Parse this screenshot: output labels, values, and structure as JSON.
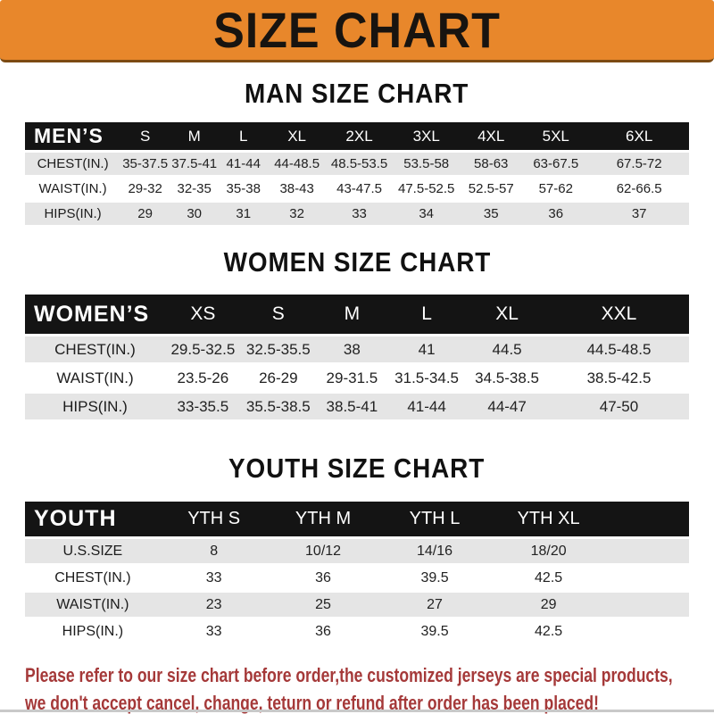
{
  "banner": {
    "title": "SIZE CHART",
    "bg_color": "#E8872B",
    "text_color": "#181410"
  },
  "sections": [
    {
      "heading": "MAN SIZE CHART",
      "corner_label": "MEN’S",
      "columns": [
        "S",
        "M",
        "L",
        "XL",
        "2XL",
        "3XL",
        "4XL",
        "5XL",
        "6XL"
      ],
      "rows": [
        {
          "label": "CHEST(IN.)",
          "values": [
            "35-37.5",
            "37.5-41",
            "41-44",
            "44-48.5",
            "48.5-53.5",
            "53.5-58",
            "58-63",
            "63-67.5",
            "67.5-72"
          ]
        },
        {
          "label": "WAIST(IN.)",
          "values": [
            "29-32",
            "32-35",
            "35-38",
            "38-43",
            "43-47.5",
            "47.5-52.5",
            "52.5-57",
            "57-62",
            "62-66.5"
          ]
        },
        {
          "label": "HIPS(IN.)",
          "values": [
            "29",
            "30",
            "31",
            "32",
            "33",
            "34",
            "35",
            "36",
            "37"
          ]
        }
      ]
    },
    {
      "heading": "WOMEN SIZE CHART",
      "corner_label": "WOMEN’S",
      "columns": [
        "XS",
        "S",
        "M",
        "L",
        "XL",
        "XXL"
      ],
      "rows": [
        {
          "label": "CHEST(IN.)",
          "values": [
            "29.5-32.5",
            "32.5-35.5",
            "38",
            "41",
            "44.5",
            "44.5-48.5"
          ]
        },
        {
          "label": "WAIST(IN.)",
          "values": [
            "23.5-26",
            "26-29",
            "29-31.5",
            "31.5-34.5",
            "34.5-38.5",
            "38.5-42.5"
          ]
        },
        {
          "label": "HIPS(IN.)",
          "values": [
            "33-35.5",
            "35.5-38.5",
            "38.5-41",
            "41-44",
            "44-47",
            "47-50"
          ]
        }
      ]
    },
    {
      "heading": "YOUTH SIZE CHART",
      "corner_label": "YOUTH",
      "columns": [
        "YTH S",
        "YTH M",
        "YTH L",
        "YTH XL",
        ""
      ],
      "rows": [
        {
          "label": "U.S.SIZE",
          "values": [
            "8",
            "10/12",
            "14/16",
            "18/20",
            ""
          ]
        },
        {
          "label": "CHEST(IN.)",
          "values": [
            "33",
            "36",
            "39.5",
            "42.5",
            ""
          ]
        },
        {
          "label": "WAIST(IN.)",
          "values": [
            "23",
            "25",
            "27",
            "29",
            ""
          ]
        },
        {
          "label": "HIPS(IN.)",
          "values": [
            "33",
            "36",
            "39.5",
            "42.5",
            ""
          ]
        }
      ]
    }
  ],
  "table_colors": {
    "header_bg": "#141414",
    "header_text": "#ffffff",
    "row_alt_bg": "#E5E5E5",
    "row_bg": "#ffffff",
    "cell_text": "#222222"
  },
  "footer": {
    "line1": "Please refer to our size chart before order,the customized jerseys are special products,",
    "line2": "we don't accept cancel, change, teturn or refund after order has been placed!",
    "text_color": "#A53939"
  }
}
